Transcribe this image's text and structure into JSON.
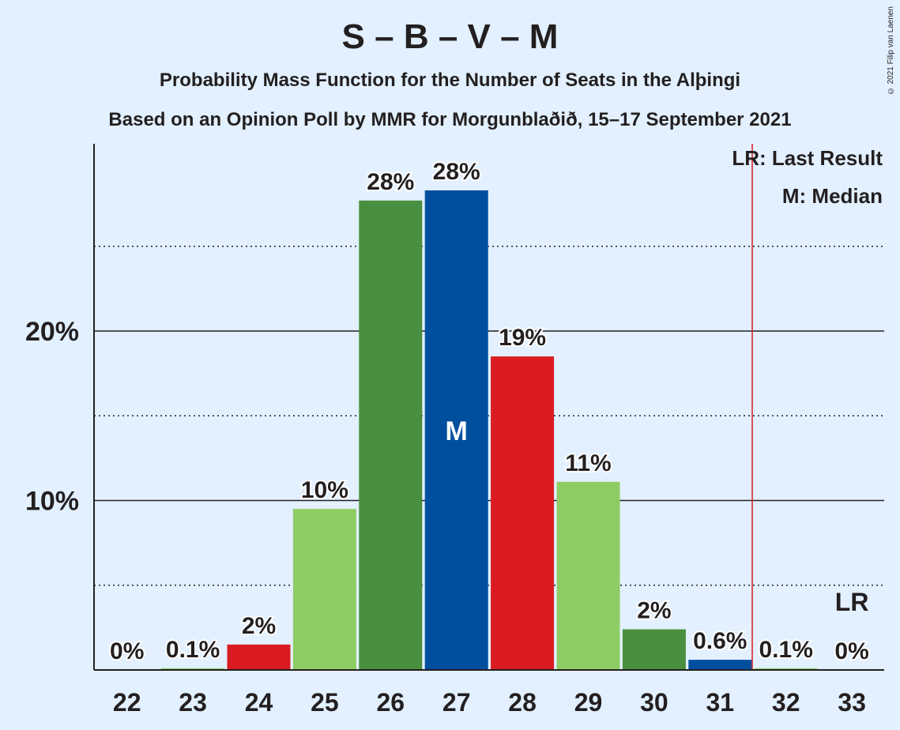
{
  "title": "S – B – V – M",
  "subtitle": "Probability Mass Function for the Number of Seats in the Alþingi",
  "subtitle2": "Based on an Opinion Poll by MMR for Morgunblaðið, 15–17 September 2021",
  "copyright": "© 2021 Filip van Laenen",
  "legend": {
    "last_result": "LR: Last Result",
    "median": "M: Median"
  },
  "colors": {
    "background": "#e2f0ff",
    "text": "#231f20",
    "lr_line": "#da1c22"
  },
  "chart_data": {
    "type": "bar",
    "categories": [
      "22",
      "23",
      "24",
      "25",
      "26",
      "27",
      "28",
      "29",
      "30",
      "31",
      "32",
      "33"
    ],
    "values": [
      0,
      0.1,
      1.5,
      9.5,
      27.7,
      28.3,
      18.5,
      11.1,
      2.4,
      0.6,
      0.1,
      0
    ],
    "labels": [
      "0%",
      "0.1%",
      "2%",
      "10%",
      "28%",
      "28%",
      "19%",
      "11%",
      "2%",
      "0.6%",
      "0.1%",
      "0%"
    ],
    "colors": [
      "#8dcd64",
      "#8dcd64",
      "#da1c22",
      "#8dcd64",
      "#4a8f3f",
      "#004f9f",
      "#da1c22",
      "#8dcd64",
      "#4a8f3f",
      "#004f9f",
      "#8dcd64",
      "#8dcd64"
    ],
    "ylim": [
      0,
      31
    ],
    "yticks": [
      10,
      20
    ],
    "ytick_labels": [
      "10%",
      "20%"
    ],
    "minor_gridlines": [
      5,
      15,
      25
    ],
    "median": "27",
    "median_label": "M",
    "last_result": "33",
    "last_result_label": "LR",
    "last_result_line_between": [
      "31",
      "32"
    ]
  }
}
